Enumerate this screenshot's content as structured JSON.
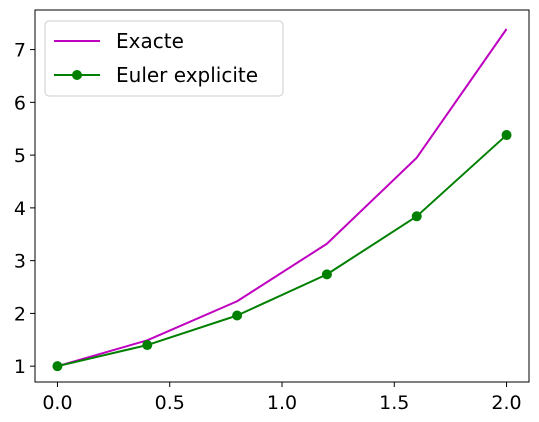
{
  "chart_data": {
    "type": "line",
    "title": "",
    "xlabel": "",
    "ylabel": "",
    "xlim": [
      -0.1,
      2.1
    ],
    "ylim": [
      0.7,
      7.75
    ],
    "x_ticks": [
      0.0,
      0.5,
      1.0,
      1.5,
      2.0
    ],
    "x_tick_labels": [
      "0.0",
      "0.5",
      "1.0",
      "1.5",
      "2.0"
    ],
    "y_ticks": [
      1,
      2,
      3,
      4,
      5,
      6,
      7
    ],
    "y_tick_labels": [
      "1",
      "2",
      "3",
      "4",
      "5",
      "6",
      "7"
    ],
    "grid": false,
    "legend_position": "top-left",
    "series": [
      {
        "name": "Exacte",
        "color": "#bf00bf",
        "marker": "none",
        "x": [
          0.0,
          0.4,
          0.8,
          1.2,
          1.6,
          2.0
        ],
        "y": [
          1.0,
          1.49,
          2.23,
          3.32,
          4.95,
          7.39
        ]
      },
      {
        "name": "Euler explicite",
        "color": "#008000",
        "marker": "circle",
        "x": [
          0.0,
          0.4,
          0.8,
          1.2,
          1.6,
          2.0
        ],
        "y": [
          1.0,
          1.4,
          1.96,
          2.74,
          3.84,
          5.38
        ]
      }
    ]
  }
}
